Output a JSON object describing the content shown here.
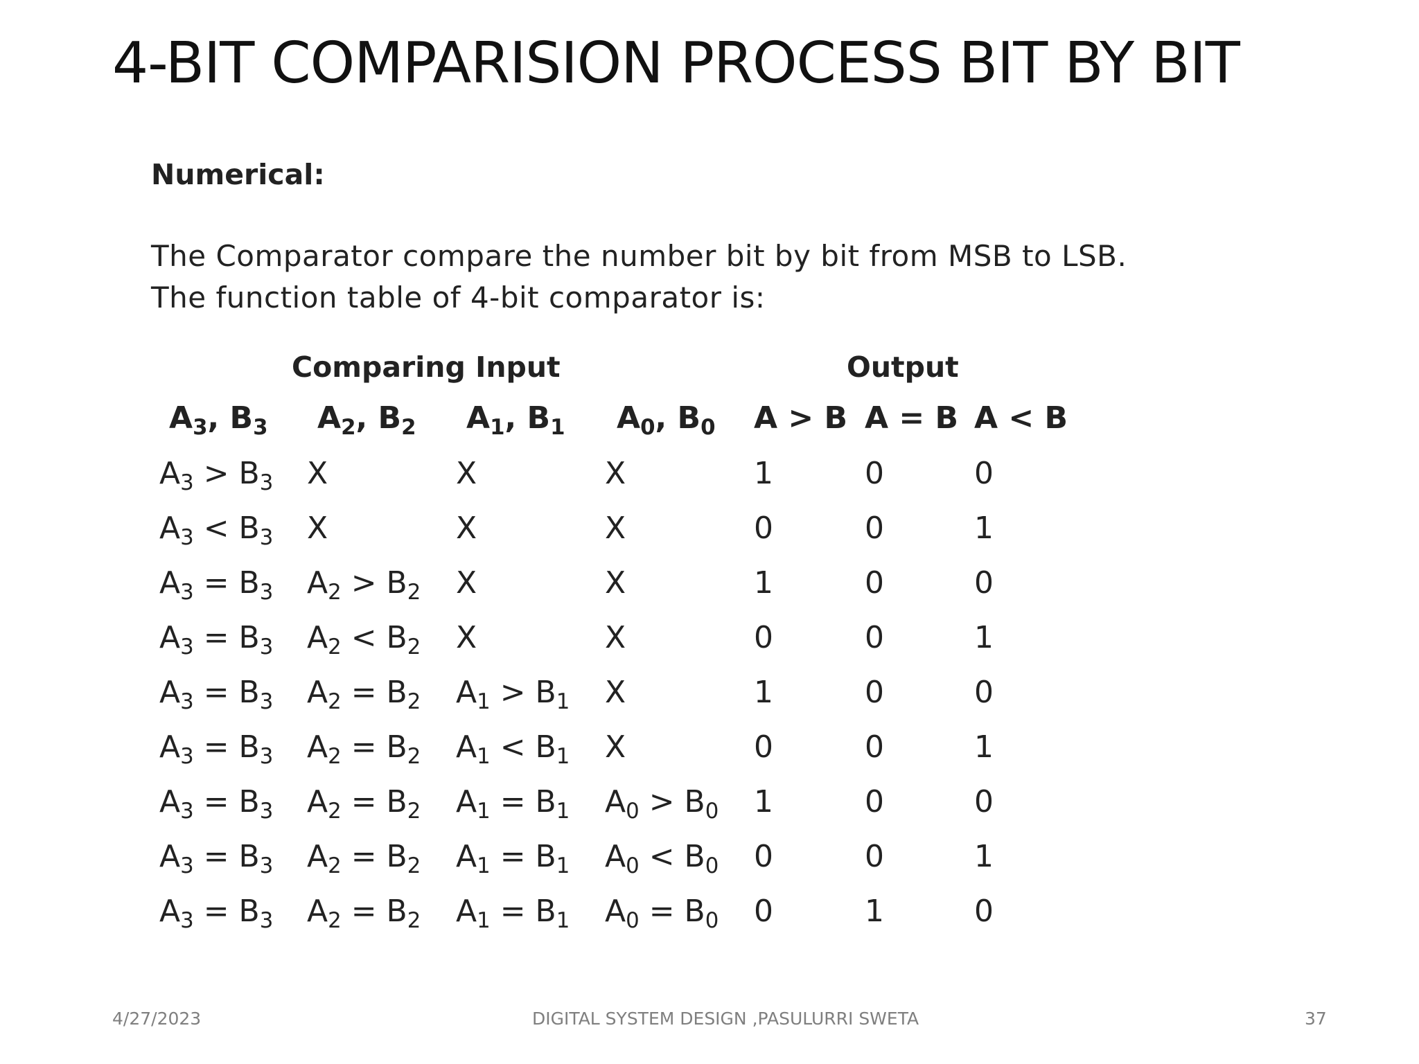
{
  "title": "4-BIT COMPARISION PROCESS BIT BY BIT",
  "heading": "Numerical:",
  "paragraph": [
    "The Comparator compare the number bit by bit from MSB to LSB.",
    "The function table of 4-bit comparator is:"
  ],
  "table": {
    "group_headers": {
      "input": "Comparing Input",
      "output": "Output"
    },
    "columns": [
      [
        [
          "A",
          ""
        ],
        [
          "3",
          "sub"
        ],
        [
          ", B",
          ""
        ],
        [
          "3",
          "sub"
        ]
      ],
      [
        [
          "A",
          ""
        ],
        [
          "2",
          "sub"
        ],
        [
          ", B",
          ""
        ],
        [
          "2",
          "sub"
        ]
      ],
      [
        [
          "A",
          ""
        ],
        [
          "1",
          "sub"
        ],
        [
          ", B",
          ""
        ],
        [
          "1",
          "sub"
        ]
      ],
      [
        [
          "A",
          ""
        ],
        [
          "0",
          "sub"
        ],
        [
          ", B",
          ""
        ],
        [
          "0",
          "sub"
        ]
      ],
      [
        [
          "A > B",
          ""
        ]
      ],
      [
        [
          "A = B",
          ""
        ]
      ],
      [
        [
          "A < B",
          ""
        ]
      ]
    ],
    "rows": [
      [
        [
          [
            "A",
            ""
          ],
          [
            "3",
            "sub"
          ],
          [
            " > B",
            ""
          ],
          [
            "3",
            "sub"
          ]
        ],
        [
          [
            "X",
            ""
          ]
        ],
        [
          [
            "X",
            ""
          ]
        ],
        [
          [
            "X",
            ""
          ]
        ],
        [
          [
            "1",
            ""
          ]
        ],
        [
          [
            "0",
            ""
          ]
        ],
        [
          [
            "0",
            ""
          ]
        ]
      ],
      [
        [
          [
            "A",
            ""
          ],
          [
            "3",
            "sub"
          ],
          [
            " < B",
            ""
          ],
          [
            "3",
            "sub"
          ]
        ],
        [
          [
            "X",
            ""
          ]
        ],
        [
          [
            "X",
            ""
          ]
        ],
        [
          [
            "X",
            ""
          ]
        ],
        [
          [
            "0",
            ""
          ]
        ],
        [
          [
            "0",
            ""
          ]
        ],
        [
          [
            "1",
            ""
          ]
        ]
      ],
      [
        [
          [
            "A",
            ""
          ],
          [
            "3",
            "sub"
          ],
          [
            " = B",
            ""
          ],
          [
            "3",
            "sub"
          ]
        ],
        [
          [
            "A",
            ""
          ],
          [
            "2",
            "sub"
          ],
          [
            " > B",
            ""
          ],
          [
            "2",
            "sub"
          ]
        ],
        [
          [
            "X",
            ""
          ]
        ],
        [
          [
            "X",
            ""
          ]
        ],
        [
          [
            "1",
            ""
          ]
        ],
        [
          [
            "0",
            ""
          ]
        ],
        [
          [
            "0",
            ""
          ]
        ]
      ],
      [
        [
          [
            "A",
            ""
          ],
          [
            "3",
            "sub"
          ],
          [
            " = B",
            ""
          ],
          [
            "3",
            "sub"
          ]
        ],
        [
          [
            "A",
            ""
          ],
          [
            "2",
            "sub"
          ],
          [
            " < B",
            ""
          ],
          [
            "2",
            "sub"
          ]
        ],
        [
          [
            "X",
            ""
          ]
        ],
        [
          [
            "X",
            ""
          ]
        ],
        [
          [
            "0",
            ""
          ]
        ],
        [
          [
            "0",
            ""
          ]
        ],
        [
          [
            "1",
            ""
          ]
        ]
      ],
      [
        [
          [
            "A",
            ""
          ],
          [
            "3",
            "sub"
          ],
          [
            " = B",
            ""
          ],
          [
            "3",
            "sub"
          ]
        ],
        [
          [
            "A",
            ""
          ],
          [
            "2",
            "sub"
          ],
          [
            " = B",
            ""
          ],
          [
            "2",
            "sub"
          ]
        ],
        [
          [
            "A",
            ""
          ],
          [
            "1",
            "sub"
          ],
          [
            " > B",
            ""
          ],
          [
            "1",
            "sub"
          ]
        ],
        [
          [
            "X",
            ""
          ]
        ],
        [
          [
            "1",
            ""
          ]
        ],
        [
          [
            "0",
            ""
          ]
        ],
        [
          [
            "0",
            ""
          ]
        ]
      ],
      [
        [
          [
            "A",
            ""
          ],
          [
            "3",
            "sub"
          ],
          [
            " = B",
            ""
          ],
          [
            "3",
            "sub"
          ]
        ],
        [
          [
            "A",
            ""
          ],
          [
            "2",
            "sub"
          ],
          [
            " = B",
            ""
          ],
          [
            "2",
            "sub"
          ]
        ],
        [
          [
            "A",
            ""
          ],
          [
            "1",
            "sub"
          ],
          [
            " < B",
            ""
          ],
          [
            "1",
            "sub"
          ]
        ],
        [
          [
            "X",
            ""
          ]
        ],
        [
          [
            "0",
            ""
          ]
        ],
        [
          [
            "0",
            ""
          ]
        ],
        [
          [
            "1",
            ""
          ]
        ]
      ],
      [
        [
          [
            "A",
            ""
          ],
          [
            "3",
            "sub"
          ],
          [
            " = B",
            ""
          ],
          [
            "3",
            "sub"
          ]
        ],
        [
          [
            "A",
            ""
          ],
          [
            "2",
            "sub"
          ],
          [
            " = B",
            ""
          ],
          [
            "2",
            "sub"
          ]
        ],
        [
          [
            "A",
            ""
          ],
          [
            "1",
            "sub"
          ],
          [
            " = B",
            ""
          ],
          [
            "1",
            "sub"
          ]
        ],
        [
          [
            "A",
            ""
          ],
          [
            "0",
            "sub"
          ],
          [
            " > B",
            ""
          ],
          [
            "0",
            "sub"
          ]
        ],
        [
          [
            "1",
            ""
          ]
        ],
        [
          [
            "0",
            ""
          ]
        ],
        [
          [
            "0",
            ""
          ]
        ]
      ],
      [
        [
          [
            "A",
            ""
          ],
          [
            "3",
            "sub"
          ],
          [
            " = B",
            ""
          ],
          [
            "3",
            "sub"
          ]
        ],
        [
          [
            "A",
            ""
          ],
          [
            "2",
            "sub"
          ],
          [
            " = B",
            ""
          ],
          [
            "2",
            "sub"
          ]
        ],
        [
          [
            "A",
            ""
          ],
          [
            "1",
            "sub"
          ],
          [
            " = B",
            ""
          ],
          [
            "1",
            "sub"
          ]
        ],
        [
          [
            "A",
            ""
          ],
          [
            "0",
            "sub"
          ],
          [
            " < B",
            ""
          ],
          [
            "0",
            "sub"
          ]
        ],
        [
          [
            "0",
            ""
          ]
        ],
        [
          [
            "0",
            ""
          ]
        ],
        [
          [
            "1",
            ""
          ]
        ]
      ],
      [
        [
          [
            "A",
            ""
          ],
          [
            "3",
            "sub"
          ],
          [
            " = B",
            ""
          ],
          [
            "3",
            "sub"
          ]
        ],
        [
          [
            "A",
            ""
          ],
          [
            "2",
            "sub"
          ],
          [
            " = B",
            ""
          ],
          [
            "2",
            "sub"
          ]
        ],
        [
          [
            "A",
            ""
          ],
          [
            "1",
            "sub"
          ],
          [
            " = B",
            ""
          ],
          [
            "1",
            "sub"
          ]
        ],
        [
          [
            "A",
            ""
          ],
          [
            "0",
            "sub"
          ],
          [
            " = B",
            ""
          ],
          [
            "0",
            "sub"
          ]
        ],
        [
          [
            "0",
            ""
          ]
        ],
        [
          [
            "1",
            ""
          ]
        ],
        [
          [
            "0",
            ""
          ]
        ]
      ]
    ]
  },
  "footer": {
    "date": "4/27/2023",
    "center": "DIGITAL SYSTEM DESIGN ,PASULURRI SWETA",
    "page": "37"
  },
  "colors": {
    "title": "#111111",
    "body_text": "#222222",
    "footer": "#7f7f7f",
    "background": "#ffffff"
  }
}
